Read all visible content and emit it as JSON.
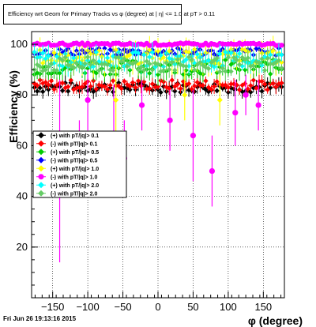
{
  "title": "Efficiency wrt Geom for Primary Tracks vs φ (degree) at | η| <= 1.0 at pT > 0.11",
  "footer": "Fri Jun 26 19:13:16 2015",
  "chart_data": {
    "type": "scatter",
    "title": "Efficiency wrt Geom for Primary Tracks vs φ (degree) at | η| <= 1.0 at pT > 0.11",
    "xlabel": "φ (degree)",
    "ylabel": "Efficiency (%)",
    "xlim": [
      -180,
      180
    ],
    "ylim": [
      0,
      105
    ],
    "xticks": [
      -150,
      -100,
      -50,
      0,
      50,
      100,
      150
    ],
    "yticks": [
      20,
      40,
      60,
      80,
      100
    ],
    "grid": true,
    "legend_position": "middle-left",
    "series": [
      {
        "name": "(+) with pT/|q|> 0.1",
        "color": "#000000",
        "marker": "diamond",
        "mean": 83,
        "spread": 2.0,
        "err": 2.0
      },
      {
        "name": "(-) with pT/|q|> 0.1",
        "color": "#ff0000",
        "marker": "diamond",
        "mean": 84,
        "spread": 2.0,
        "err": 2.0
      },
      {
        "name": "(+) with pT/|q|> 0.5",
        "color": "#00cc00",
        "marker": "diamond",
        "mean": 91,
        "spread": 3.0,
        "err": 3.0
      },
      {
        "name": "(-) with pT/|q|> 0.5",
        "color": "#0000ff",
        "marker": "diamond",
        "mean": 97,
        "spread": 1.5,
        "err": 1.5
      },
      {
        "name": "(+) with pT/|q|> 1.0",
        "color": "#ffff00",
        "marker": "diamond",
        "mean": 95,
        "spread": 3.0,
        "err": 4.0
      },
      {
        "name": "(-) with pT/|q|> 1.0",
        "color": "#ff00ff",
        "marker": "circle",
        "mean": 100,
        "spread": 0.5,
        "err": 0.5
      },
      {
        "name": "(+) with pT/|q|> 2.0",
        "color": "#00ffff",
        "marker": "diamond",
        "mean": 94,
        "spread": 3.0,
        "err": 3.0
      },
      {
        "name": "(-) with pT/|q|> 2.0",
        "color": "#66cc66",
        "marker": "diamond",
        "mean": 92,
        "spread": 3.0,
        "err": 3.0
      }
    ],
    "outliers": [
      {
        "series": 5,
        "x": -140,
        "y": 50,
        "err": 36
      },
      {
        "series": 5,
        "x": -112,
        "y": 55,
        "err": 15
      },
      {
        "series": 5,
        "x": -63,
        "y": 64,
        "err": 20
      },
      {
        "series": 5,
        "x": -48,
        "y": 55,
        "err": 15
      },
      {
        "series": 5,
        "x": -23,
        "y": 76,
        "err": 10
      },
      {
        "series": 5,
        "x": 17,
        "y": 70,
        "err": 12
      },
      {
        "series": 5,
        "x": 50,
        "y": 64,
        "err": 18
      },
      {
        "series": 5,
        "x": 77,
        "y": 50,
        "err": 14
      },
      {
        "series": 5,
        "x": 110,
        "y": 73,
        "err": 13
      },
      {
        "series": 5,
        "x": 143,
        "y": 76,
        "err": 10
      },
      {
        "series": 5,
        "x": -100,
        "y": 78,
        "err": 12
      },
      {
        "series": 4,
        "x": -60,
        "y": 78,
        "err": 14
      },
      {
        "series": 4,
        "x": 38,
        "y": 80,
        "err": 10
      },
      {
        "series": 4,
        "x": 88,
        "y": 78,
        "err": 10
      },
      {
        "series": 5,
        "x": 125,
        "y": 80,
        "err": 8
      }
    ]
  },
  "legend": [
    "(+) with pT/|q|> 0.1",
    "(-) with pT/|q|> 0.1",
    "(+) with pT/|q|> 0.5",
    "(-) with pT/|q|> 0.5",
    "(+) with pT/|q|> 1.0",
    "(-) with pT/|q|> 1.0",
    "(+) with pT/|q|> 2.0",
    "(-) with pT/|q|> 2.0"
  ]
}
